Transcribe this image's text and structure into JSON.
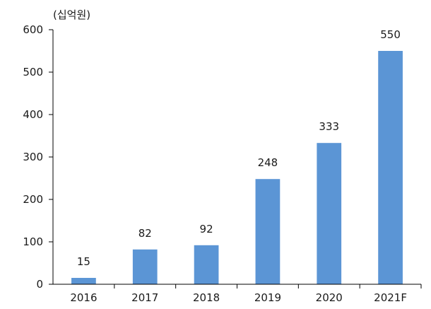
{
  "chart_data": {
    "type": "bar",
    "unit_label": "(십억원)",
    "categories": [
      "2016",
      "2017",
      "2018",
      "2019",
      "2020",
      "2021F"
    ],
    "values": [
      15,
      82,
      92,
      248,
      333,
      550
    ],
    "ylim": [
      0,
      600
    ],
    "yticks": [
      0,
      100,
      200,
      300,
      400,
      500,
      600
    ],
    "bar_color": "#5b95d5",
    "axis_color": "#000000",
    "grid": false,
    "legend": "none"
  }
}
